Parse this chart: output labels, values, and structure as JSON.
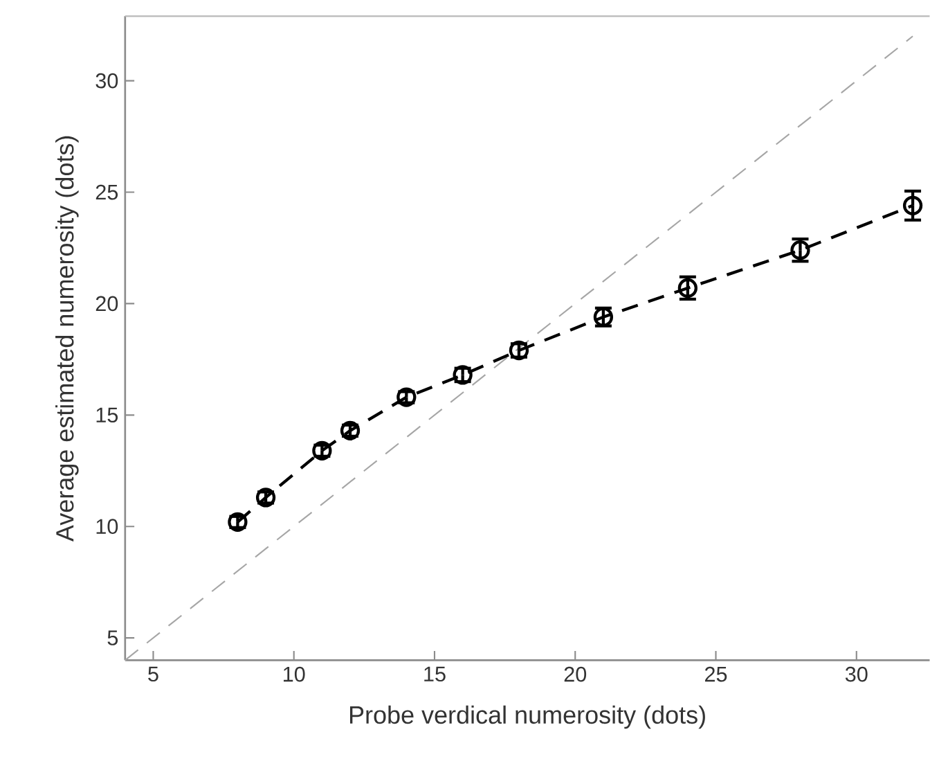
{
  "chart_data": {
    "type": "line",
    "xlabel": "Probe verdical numerosity (dots)",
    "ylabel": "Average estimated numerosity (dots)",
    "xlim": [
      4,
      32.6
    ],
    "ylim": [
      4,
      32.9
    ],
    "xticks": [
      5,
      10,
      15,
      20,
      25,
      30
    ],
    "yticks": [
      5,
      10,
      15,
      20,
      25,
      30
    ],
    "series": [
      {
        "color": "#000000",
        "marker": "circle",
        "line_style": "dashed",
        "x": [
          8,
          9,
          11,
          12,
          14,
          16,
          18,
          21,
          24,
          28,
          32
        ],
        "values": [
          10.2,
          11.3,
          13.4,
          14.3,
          15.8,
          16.8,
          17.9,
          19.4,
          20.7,
          22.4,
          24.4
        ],
        "errors": [
          0.25,
          0.25,
          0.25,
          0.25,
          0.25,
          0.3,
          0.3,
          0.4,
          0.5,
          0.5,
          0.65
        ]
      },
      {
        "color": "#a6a6a6",
        "marker": "none",
        "line_style": "dashed",
        "x": [
          4,
          32
        ],
        "values": [
          4,
          32
        ]
      }
    ]
  }
}
